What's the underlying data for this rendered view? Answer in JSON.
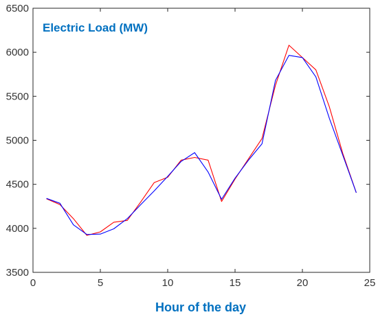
{
  "chart_data": {
    "type": "line",
    "title": "Electric Load (MW)",
    "xlabel": "Hour of the day",
    "ylabel": "",
    "xlim": [
      0,
      25
    ],
    "ylim": [
      3500,
      6500
    ],
    "xticks": [
      0,
      5,
      10,
      15,
      20,
      25
    ],
    "yticks": [
      3500,
      4000,
      4500,
      5000,
      5500,
      6000,
      6500
    ],
    "xtick_labels": [
      "0",
      "5",
      "10",
      "15",
      "20",
      "25"
    ],
    "ytick_labels": [
      "3500",
      "4000",
      "4500",
      "5000",
      "5500",
      "6000",
      "6500"
    ],
    "grid": false,
    "legend": "none",
    "x": [
      1,
      2,
      3,
      4,
      5,
      6,
      7,
      8,
      9,
      10,
      11,
      12,
      13,
      14,
      15,
      16,
      17,
      18,
      19,
      20,
      21,
      22,
      23,
      24
    ],
    "series": [
      {
        "color": "#ff0000",
        "values": [
          4335,
          4270,
          4110,
          3920,
          3960,
          4070,
          4090,
          4300,
          4520,
          4580,
          4775,
          4805,
          4775,
          4305,
          4560,
          4790,
          5020,
          5625,
          6080,
          5940,
          5800,
          5380,
          4850,
          4405
        ]
      },
      {
        "color": "#0000ff",
        "values": [
          4340,
          4285,
          4040,
          3930,
          3935,
          3995,
          4110,
          4270,
          4425,
          4590,
          4760,
          4860,
          4640,
          4330,
          4570,
          4775,
          4960,
          5680,
          5965,
          5940,
          5720,
          5250,
          4830,
          4405
        ]
      }
    ]
  },
  "colors": {
    "title": "#0070c0",
    "axis_label": "#0070c0",
    "axis": "#262626",
    "tick_text": "#333333"
  }
}
